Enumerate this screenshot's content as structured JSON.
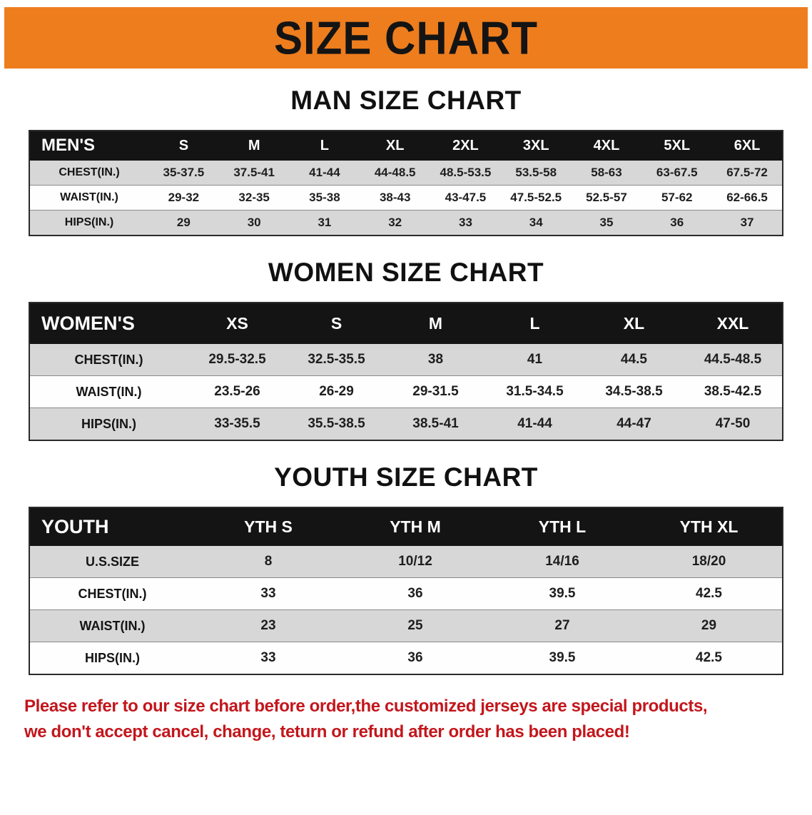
{
  "banner": {
    "title": "SIZE CHART"
  },
  "colors": {
    "banner-bg": "#ee7d1e",
    "table-header-bg": "#141414",
    "row-alt-bg": "#d7d7d7",
    "notice-color": "#c3161c"
  },
  "sections": [
    {
      "heading": "MAN SIZE CHART",
      "table": {
        "header": [
          "MEN'S",
          "S",
          "M",
          "L",
          "XL",
          "2XL",
          "3XL",
          "4XL",
          "5XL",
          "6XL"
        ],
        "rows": [
          {
            "label": "CHEST(IN.)",
            "values": [
              "35-37.5",
              "37.5-41",
              "41-44",
              "44-48.5",
              "48.5-53.5",
              "53.5-58",
              "58-63",
              "63-67.5",
              "67.5-72"
            ]
          },
          {
            "label": "WAIST(IN.)",
            "values": [
              "29-32",
              "32-35",
              "35-38",
              "38-43",
              "43-47.5",
              "47.5-52.5",
              "52.5-57",
              "57-62",
              "62-66.5"
            ]
          },
          {
            "label": "HIPS(IN.)",
            "values": [
              "29",
              "30",
              "31",
              "32",
              "33",
              "34",
              "35",
              "36",
              "37"
            ]
          }
        ]
      }
    },
    {
      "heading": "WOMEN SIZE CHART",
      "table": {
        "header": [
          "WOMEN'S",
          "XS",
          "S",
          "M",
          "L",
          "XL",
          "XXL"
        ],
        "rows": [
          {
            "label": "CHEST(IN.)",
            "values": [
              "29.5-32.5",
              "32.5-35.5",
              "38",
              "41",
              "44.5",
              "44.5-48.5"
            ]
          },
          {
            "label": "WAIST(IN.)",
            "values": [
              "23.5-26",
              "26-29",
              "29-31.5",
              "31.5-34.5",
              "34.5-38.5",
              "38.5-42.5"
            ]
          },
          {
            "label": "HIPS(IN.)",
            "values": [
              "33-35.5",
              "35.5-38.5",
              "38.5-41",
              "41-44",
              "44-47",
              "47-50"
            ]
          }
        ]
      }
    },
    {
      "heading": "YOUTH SIZE CHART",
      "table": {
        "header": [
          "YOUTH",
          "YTH S",
          "YTH M",
          "YTH L",
          "YTH XL"
        ],
        "rows": [
          {
            "label": "U.S.SIZE",
            "values": [
              "8",
              "10/12",
              "14/16",
              "18/20"
            ]
          },
          {
            "label": "CHEST(IN.)",
            "values": [
              "33",
              "36",
              "39.5",
              "42.5"
            ]
          },
          {
            "label": "WAIST(IN.)",
            "values": [
              "23",
              "25",
              "27",
              "29"
            ]
          },
          {
            "label": "HIPS(IN.)",
            "values": [
              "33",
              "36",
              "39.5",
              "42.5"
            ]
          }
        ]
      }
    }
  ],
  "notice": {
    "line1": "Please refer to our size chart before order,the customized jerseys are special products,",
    "line2": "we don't accept cancel, change, teturn or refund after order has been placed!"
  }
}
